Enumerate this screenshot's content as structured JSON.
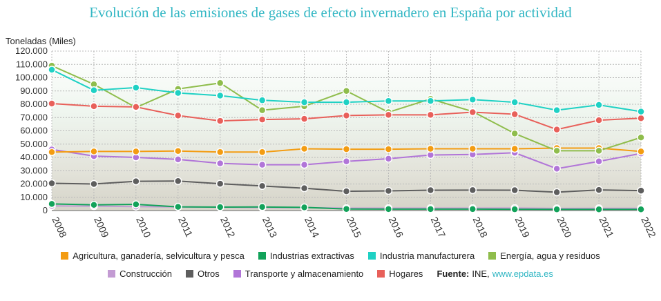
{
  "title": "Evolución de las emisiones de gases de efecto invernadero en España por actividad",
  "source": {
    "label": "Fuente:",
    "value": "INE,",
    "link": "www.epdata.es"
  },
  "chart_data": {
    "type": "line",
    "ylabel": "Toneladas (Miles)",
    "ylim": [
      0,
      120000
    ],
    "yticks": [
      0,
      10000,
      20000,
      30000,
      40000,
      50000,
      60000,
      70000,
      80000,
      90000,
      100000,
      110000,
      120000
    ],
    "ytick_labels": [
      "0",
      "10.000",
      "20.000",
      "30.000",
      "40.000",
      "50.000",
      "60.000",
      "70.000",
      "80.000",
      "90.000",
      "100.000",
      "110.000",
      "120.000"
    ],
    "grid": true,
    "legend_position": "bottom",
    "categories": [
      "2008",
      "2009",
      "2010",
      "2011",
      "2012",
      "2013",
      "2014",
      "2015",
      "2016",
      "2017",
      "2018",
      "2019",
      "2020",
      "2021",
      "2022"
    ],
    "series": [
      {
        "name": "Otros",
        "color": "#5e5e5e",
        "values": [
          20500,
          20000,
          22000,
          22200,
          20200,
          18500,
          16800,
          14500,
          14800,
          15300,
          15400,
          15300,
          13800,
          15500,
          15000
        ]
      },
      {
        "name": "Construcción",
        "color": "#c39bd3",
        "values": [
          3500,
          3300,
          3000,
          2700,
          2500,
          2300,
          2200,
          1800,
          1800,
          1800,
          1800,
          1900,
          1600,
          1700,
          1700
        ]
      },
      {
        "name": "Industrias extractivas",
        "color": "#12a25a",
        "values": [
          5000,
          4300,
          4700,
          2800,
          2600,
          2700,
          2400,
          1200,
          1100,
          1100,
          1100,
          1000,
          900,
          900,
          900
        ]
      },
      {
        "name": "Transporte y almacenamiento",
        "color": "#b175d8",
        "values": [
          46000,
          41000,
          40000,
          38500,
          35500,
          34500,
          34500,
          37000,
          39000,
          41800,
          42200,
          43500,
          31500,
          37000,
          43000
        ]
      },
      {
        "name": "Agricultura, ganadería, selvicultura y pesca",
        "color": "#f39c12",
        "values": [
          44000,
          44500,
          44500,
          44800,
          44000,
          44000,
          46500,
          46200,
          46200,
          46500,
          46500,
          46500,
          47000,
          47000,
          44500
        ]
      },
      {
        "name": "Energía, agua y residuos",
        "color": "#8fbd4c",
        "values": [
          109000,
          95000,
          77500,
          91500,
          96000,
          75500,
          78500,
          90000,
          74000,
          84000,
          74500,
          58000,
          45000,
          45000,
          55000
        ]
      },
      {
        "name": "Hogares",
        "color": "#e8605a",
        "values": [
          80500,
          78500,
          78000,
          71500,
          67500,
          68500,
          69000,
          71500,
          72000,
          72000,
          74000,
          72500,
          61000,
          68000,
          69500
        ]
      },
      {
        "name": "Industria manufacturera",
        "color": "#1fd1c4",
        "values": [
          106000,
          90500,
          92500,
          88500,
          86500,
          83000,
          81500,
          81500,
          82500,
          82500,
          83500,
          81500,
          75500,
          79500,
          74500
        ]
      }
    ]
  },
  "legend": {
    "row1": [
      {
        "label": "Agricultura, ganadería, selvicultura y pesca",
        "color": "#f39c12"
      },
      {
        "label": "Industrias extractivas",
        "color": "#12a25a"
      },
      {
        "label": "Industria manufacturera",
        "color": "#1fd1c4"
      },
      {
        "label": "Energía, agua y residuos",
        "color": "#8fbd4c"
      }
    ],
    "row2": [
      {
        "label": "Construcción",
        "color": "#c39bd3"
      },
      {
        "label": "Otros",
        "color": "#5e5e5e"
      },
      {
        "label": "Transporte y almacenamiento",
        "color": "#b175d8"
      },
      {
        "label": "Hogares",
        "color": "#e8605a"
      }
    ]
  }
}
